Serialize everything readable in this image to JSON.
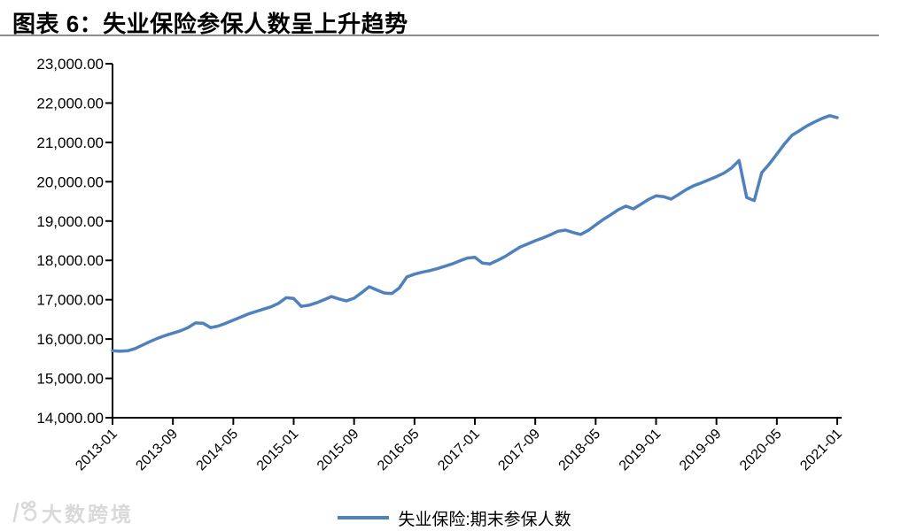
{
  "header": {
    "title": "图表 6：失业保险参保人数呈上升趋势"
  },
  "watermark": {
    "text": "大数跨境",
    "color": "#d9d9d9"
  },
  "chart_data": {
    "type": "line",
    "title": "失业保险参保人数呈上升趋势",
    "xlabel": "",
    "ylabel": "",
    "grid": false,
    "legend_position": "bottom",
    "ylim": [
      14000,
      23000
    ],
    "y_tick_step": 1000,
    "y_tick_labels": [
      "14,000.00",
      "15,000.00",
      "16,000.00",
      "17,000.00",
      "18,000.00",
      "19,000.00",
      "20,000.00",
      "21,000.00",
      "22,000.00",
      "23,000.00"
    ],
    "x_tick_every": 8,
    "x_tick_labels": [
      "2013-01",
      "2013-09",
      "2014-05",
      "2015-01",
      "2015-09",
      "2016-05",
      "2017-01",
      "2017-09",
      "2018-05",
      "2019-01",
      "2019-09",
      "2020-05",
      "2021-01"
    ],
    "x": [
      "2013-01",
      "2013-02",
      "2013-03",
      "2013-04",
      "2013-05",
      "2013-06",
      "2013-07",
      "2013-08",
      "2013-09",
      "2013-10",
      "2013-11",
      "2013-12",
      "2014-01",
      "2014-02",
      "2014-03",
      "2014-04",
      "2014-05",
      "2014-06",
      "2014-07",
      "2014-08",
      "2014-09",
      "2014-10",
      "2014-11",
      "2014-12",
      "2015-01",
      "2015-02",
      "2015-03",
      "2015-04",
      "2015-05",
      "2015-06",
      "2015-07",
      "2015-08",
      "2015-09",
      "2015-10",
      "2015-11",
      "2015-12",
      "2016-01",
      "2016-02",
      "2016-03",
      "2016-04",
      "2016-05",
      "2016-06",
      "2016-07",
      "2016-08",
      "2016-09",
      "2016-10",
      "2016-11",
      "2016-12",
      "2017-01",
      "2017-02",
      "2017-03",
      "2017-04",
      "2017-05",
      "2017-06",
      "2017-07",
      "2017-08",
      "2017-09",
      "2017-10",
      "2017-11",
      "2017-12",
      "2018-01",
      "2018-02",
      "2018-03",
      "2018-04",
      "2018-05",
      "2018-06",
      "2018-07",
      "2018-08",
      "2018-09",
      "2018-10",
      "2018-11",
      "2018-12",
      "2019-01",
      "2019-02",
      "2019-03",
      "2019-04",
      "2019-05",
      "2019-06",
      "2019-07",
      "2019-08",
      "2019-09",
      "2019-10",
      "2019-11",
      "2019-12",
      "2020-01",
      "2020-02",
      "2020-03",
      "2020-04",
      "2020-05",
      "2020-06",
      "2020-07",
      "2020-08",
      "2020-09",
      "2020-10",
      "2020-11",
      "2020-12",
      "2021-01"
    ],
    "series": [
      {
        "name": "失业保险:期末参保人数",
        "color": "#4f81bd",
        "values": [
          15700,
          15690,
          15700,
          15760,
          15850,
          15940,
          16020,
          16090,
          16150,
          16210,
          16290,
          16410,
          16400,
          16290,
          16330,
          16400,
          16480,
          16560,
          16640,
          16700,
          16760,
          16820,
          16910,
          17050,
          17030,
          16830,
          16860,
          16920,
          17000,
          17080,
          17020,
          16970,
          17040,
          17180,
          17330,
          17250,
          17170,
          17160,
          17300,
          17580,
          17650,
          17700,
          17740,
          17790,
          17850,
          17910,
          17990,
          18060,
          18080,
          17930,
          17910,
          18000,
          18100,
          18220,
          18340,
          18420,
          18500,
          18570,
          18650,
          18740,
          18770,
          18710,
          18660,
          18760,
          18900,
          19040,
          19160,
          19290,
          19380,
          19310,
          19430,
          19550,
          19640,
          19620,
          19560,
          19680,
          19800,
          19900,
          19970,
          20050,
          20130,
          20220,
          20350,
          20540,
          19600,
          19520,
          20230,
          20450,
          20700,
          20960,
          21180,
          21300,
          21420,
          21520,
          21610,
          21680,
          21630
        ]
      }
    ]
  }
}
